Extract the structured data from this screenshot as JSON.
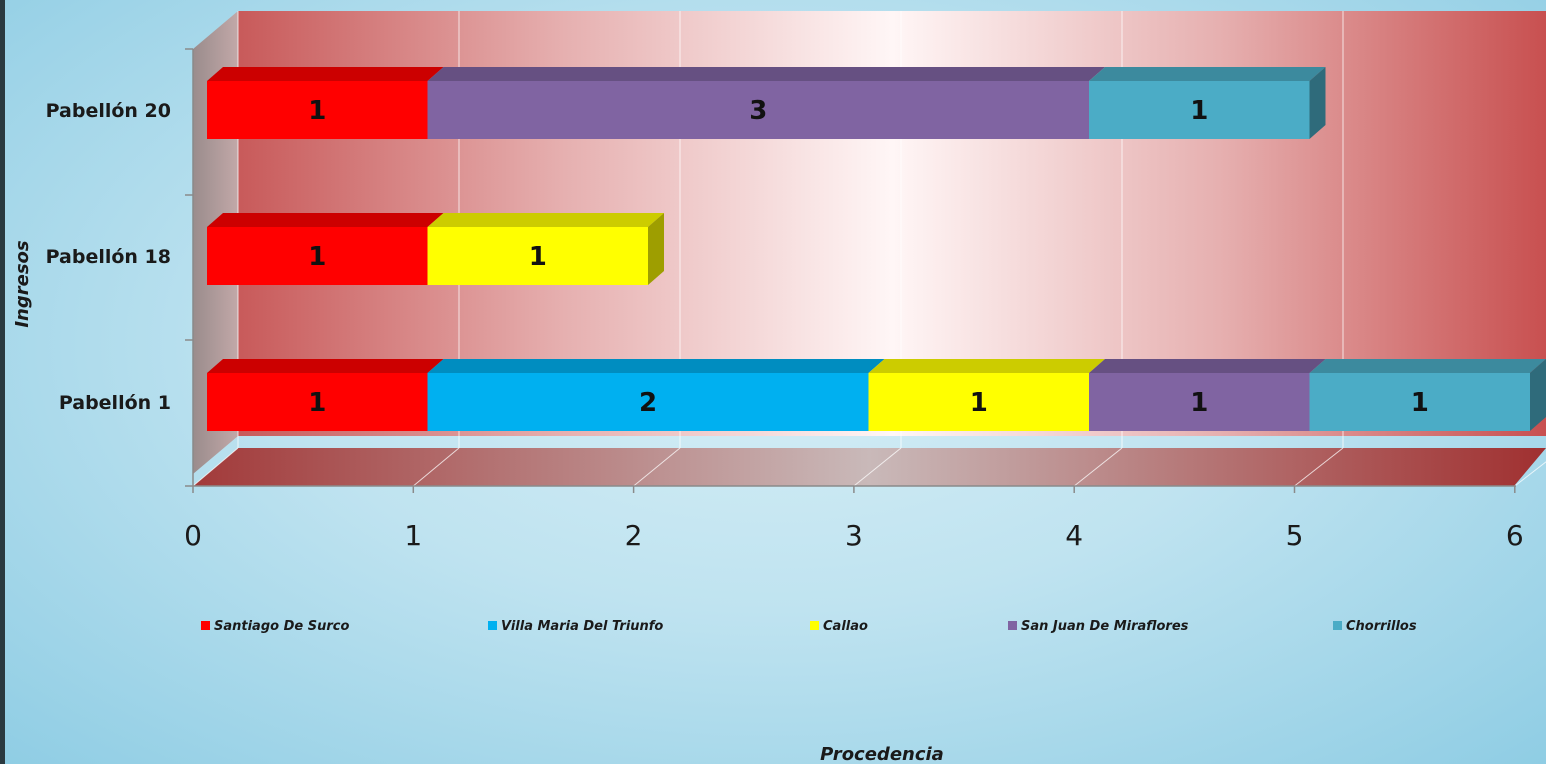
{
  "chart_data": {
    "type": "bar",
    "orientation": "horizontal",
    "stacked": true,
    "three_d": true,
    "categories": [
      "Pabellón 1",
      "Pabellón 18",
      "Pabellón 20"
    ],
    "series": [
      {
        "name": "Santiago De Surco",
        "color": "#ff0000",
        "values": [
          1,
          1,
          1
        ]
      },
      {
        "name": "Villa Maria Del Triunfo",
        "color": "#00b0f0",
        "values": [
          2,
          null,
          null
        ]
      },
      {
        "name": "Callao",
        "color": "#ffff00",
        "values": [
          1,
          1,
          null
        ]
      },
      {
        "name": "San Juan De Miraflores",
        "color": "#8064a2",
        "values": [
          1,
          null,
          3
        ]
      },
      {
        "name": "Chorrillos",
        "color": "#4bacc6",
        "values": [
          1,
          null,
          1
        ]
      }
    ],
    "xlabel": "Procedencia",
    "ylabel": "Ingresos",
    "xlim": [
      0,
      6
    ],
    "xticks": [
      "0",
      "1",
      "2",
      "3",
      "4",
      "5",
      "6"
    ],
    "grid": true,
    "legend_position": "bottom"
  }
}
